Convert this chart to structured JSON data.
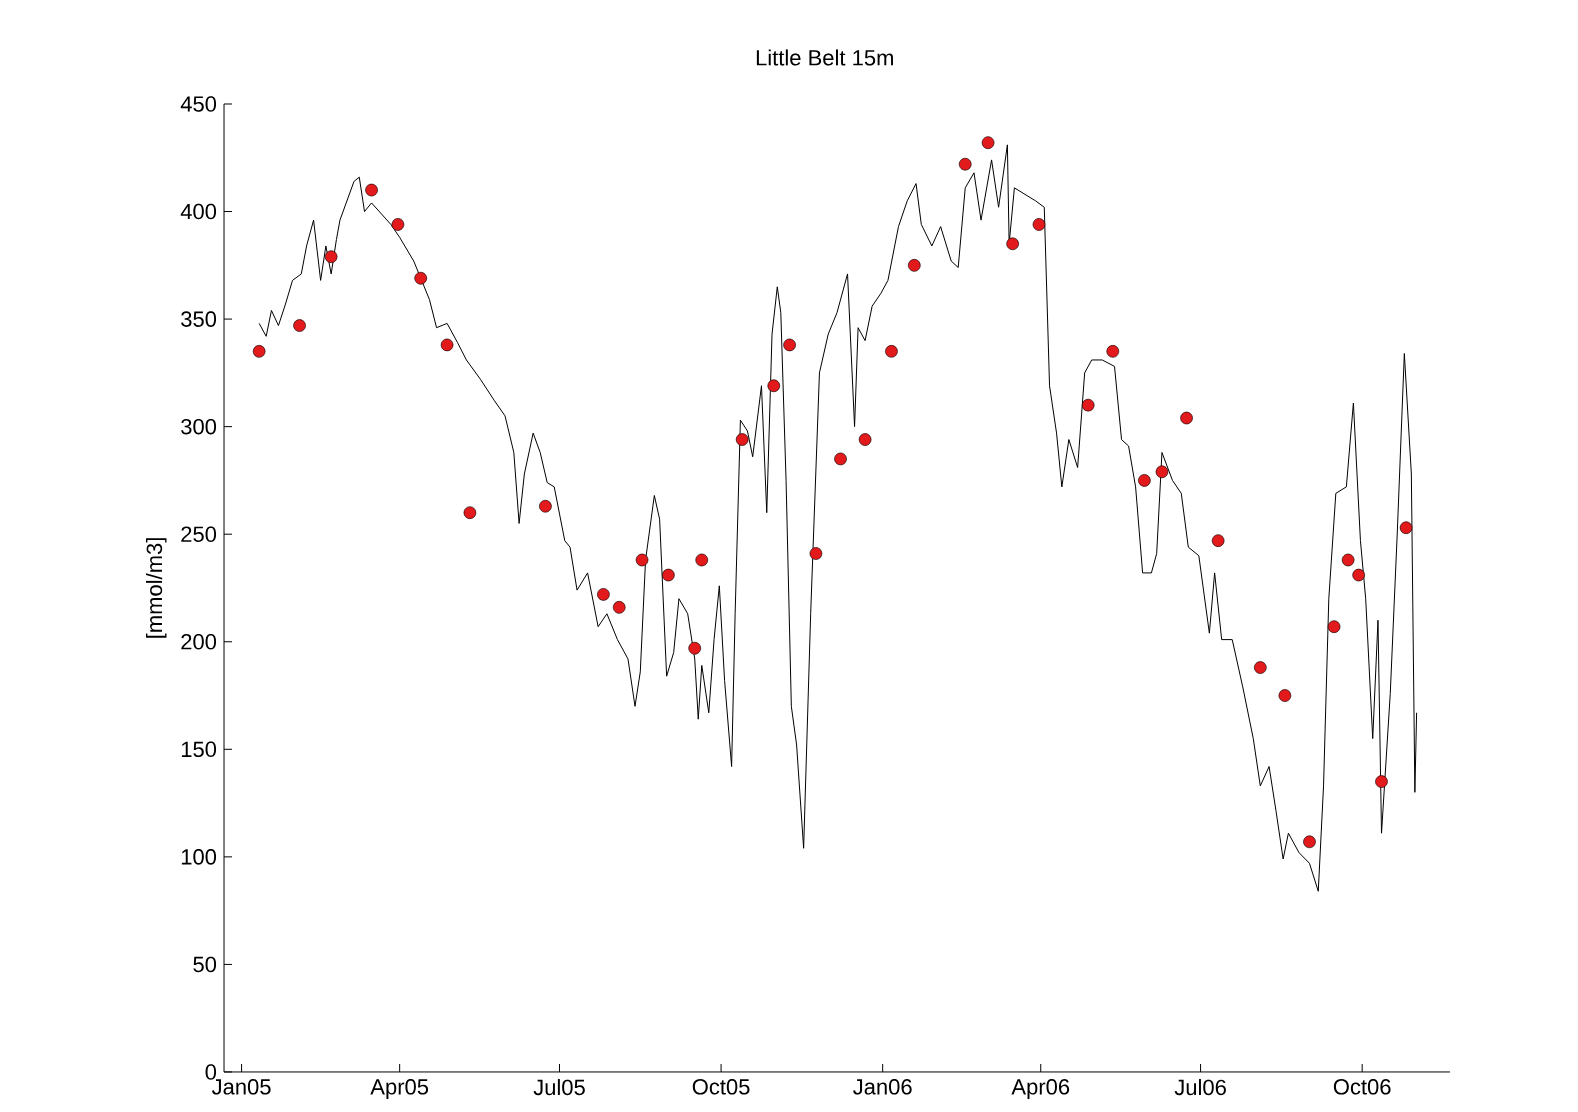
{
  "chart_data": {
    "type": "line",
    "title": "Little Belt 15m",
    "ylabel": "[mmol/m3]",
    "xlim": [
      "2004-12-22",
      "2006-11-20"
    ],
    "ylim": [
      0,
      450
    ],
    "xticks": [
      {
        "value": "2005-01-01",
        "label": "Jan05"
      },
      {
        "value": "2005-04-01",
        "label": "Apr05"
      },
      {
        "value": "2005-07-01",
        "label": "Jul05"
      },
      {
        "value": "2005-10-01",
        "label": "Oct05"
      },
      {
        "value": "2006-01-01",
        "label": "Jan06"
      },
      {
        "value": "2006-04-01",
        "label": "Apr06"
      },
      {
        "value": "2006-07-01",
        "label": "Jul06"
      },
      {
        "value": "2006-10-01",
        "label": "Oct06"
      }
    ],
    "yticks": [
      0,
      50,
      100,
      150,
      200,
      250,
      300,
      350,
      400,
      450
    ],
    "grid": false,
    "series": [
      {
        "color": "#000000",
        "marker": "none",
        "line_style": "solid",
        "x": [
          "2005-01-11",
          "2005-01-15",
          "2005-01-18",
          "2005-01-22",
          "2005-01-26",
          "2005-01-30",
          "2005-02-04",
          "2005-02-07",
          "2005-02-11",
          "2005-02-15",
          "2005-02-18",
          "2005-02-21",
          "2005-02-24",
          "2005-02-26",
          "2005-03-06",
          "2005-03-09",
          "2005-03-12",
          "2005-03-16",
          "2005-03-27",
          "2005-04-01",
          "2005-04-09",
          "2005-04-15",
          "2005-04-18",
          "2005-04-22",
          "2005-04-28",
          "2005-05-04",
          "2005-05-09",
          "2005-05-17",
          "2005-05-25",
          "2005-05-31",
          "2005-06-05",
          "2005-06-08",
          "2005-06-11",
          "2005-06-16",
          "2005-06-20",
          "2005-06-24",
          "2005-06-28",
          "2005-07-04",
          "2005-07-07",
          "2005-07-11",
          "2005-07-17",
          "2005-07-23",
          "2005-07-28",
          "2005-08-03",
          "2005-08-09",
          "2005-08-13",
          "2005-08-16",
          "2005-08-19",
          "2005-08-24",
          "2005-08-27",
          "2005-08-31",
          "2005-09-04",
          "2005-09-07",
          "2005-09-12",
          "2005-09-16",
          "2005-09-18",
          "2005-09-20",
          "2005-09-24",
          "2005-09-27",
          "2005-09-30",
          "2005-10-03",
          "2005-10-07",
          "2005-10-09",
          "2005-10-12",
          "2005-10-16",
          "2005-10-19",
          "2005-10-24",
          "2005-10-27",
          "2005-10-30",
          "2005-11-02",
          "2005-11-04",
          "2005-11-07",
          "2005-11-10",
          "2005-11-13",
          "2005-11-17",
          "2005-11-21",
          "2005-11-26",
          "2005-12-01",
          "2005-12-06",
          "2005-12-12",
          "2005-12-16",
          "2005-12-18",
          "2005-12-22",
          "2005-12-26",
          "2005-12-31",
          "2006-01-04",
          "2006-01-10",
          "2006-01-15",
          "2006-01-20",
          "2006-01-23",
          "2006-01-29",
          "2006-02-03",
          "2006-02-09",
          "2006-02-13",
          "2006-02-17",
          "2006-02-22",
          "2006-02-26",
          "2006-03-04",
          "2006-03-08",
          "2006-03-13",
          "2006-03-14",
          "2006-03-17",
          "2006-03-23",
          "2006-03-29",
          "2006-04-03",
          "2006-04-06",
          "2006-04-10",
          "2006-04-13",
          "2006-04-17",
          "2006-04-22",
          "2006-04-26",
          "2006-04-30",
          "2006-05-06",
          "2006-05-13",
          "2006-05-17",
          "2006-05-21",
          "2006-05-25",
          "2006-05-29",
          "2006-06-03",
          "2006-06-06",
          "2006-06-09",
          "2006-06-15",
          "2006-06-20",
          "2006-06-24",
          "2006-06-30",
          "2006-07-06",
          "2006-07-09",
          "2006-07-13",
          "2006-07-19",
          "2006-07-25",
          "2006-07-31",
          "2006-08-04",
          "2006-08-09",
          "2006-08-13",
          "2006-08-17",
          "2006-08-20",
          "2006-08-26",
          "2006-09-01",
          "2006-09-06",
          "2006-09-09",
          "2006-09-12",
          "2006-09-16",
          "2006-09-22",
          "2006-09-26",
          "2006-09-30",
          "2006-10-03",
          "2006-10-07",
          "2006-10-10",
          "2006-10-12",
          "2006-10-17",
          "2006-10-21",
          "2006-10-25",
          "2006-10-29",
          "2006-10-31",
          "2006-11-01"
        ],
        "values": [
          348,
          342,
          354,
          347,
          357,
          368,
          371,
          384,
          396,
          368,
          384,
          371,
          387,
          396,
          414,
          416,
          400,
          404,
          394,
          388,
          377,
          365,
          359,
          346,
          348,
          339,
          331,
          322,
          312,
          305,
          288,
          255,
          278,
          297,
          288,
          274,
          272,
          247,
          244,
          224,
          232,
          207,
          213,
          201,
          192,
          170,
          186,
          238,
          268,
          257,
          184,
          195,
          220,
          213,
          192,
          164,
          189,
          167,
          201,
          226,
          182,
          142,
          213,
          303,
          298,
          286,
          319,
          260,
          343,
          365,
          353,
          275,
          170,
          152,
          104,
          213,
          325,
          343,
          353,
          371,
          300,
          346,
          340,
          356,
          362,
          368,
          393,
          405,
          413,
          394,
          384,
          393,
          377,
          374,
          411,
          418,
          396,
          424,
          402,
          431,
          385,
          411,
          408,
          405,
          402,
          319,
          297,
          272,
          294,
          281,
          325,
          331,
          331,
          328,
          294,
          291,
          272,
          232,
          232,
          241,
          288,
          275,
          269,
          244,
          240,
          204,
          232,
          201,
          201,
          179,
          155,
          133,
          142,
          121,
          99,
          111,
          102,
          97,
          84,
          133,
          220,
          269,
          272,
          311,
          247,
          220,
          155,
          210,
          111,
          176,
          251,
          334,
          278,
          130,
          167
        ]
      },
      {
        "type": "scatter",
        "color": "#e31a1c",
        "marker": "circle",
        "x": [
          "2005-01-11",
          "2005-02-03",
          "2005-02-21",
          "2005-03-16",
          "2005-03-31",
          "2005-04-13",
          "2005-04-28",
          "2005-05-11",
          "2005-06-23",
          "2005-07-26",
          "2005-08-04",
          "2005-08-17",
          "2005-09-01",
          "2005-09-16",
          "2005-09-20",
          "2005-10-13",
          "2005-10-31",
          "2005-11-09",
          "2005-11-24",
          "2005-12-08",
          "2005-12-22",
          "2006-01-06",
          "2006-01-19",
          "2006-02-17",
          "2006-03-02",
          "2006-03-16",
          "2006-03-31",
          "2006-04-28",
          "2006-05-12",
          "2006-05-30",
          "2006-06-09",
          "2006-06-23",
          "2006-07-11",
          "2006-08-04",
          "2006-08-18",
          "2006-09-01",
          "2006-09-15",
          "2006-09-23",
          "2006-09-29",
          "2006-10-12",
          "2006-10-26"
        ],
        "values": [
          335,
          347,
          379,
          410,
          394,
          369,
          338,
          260,
          263,
          222,
          216,
          238,
          231,
          197,
          238,
          294,
          319,
          338,
          241,
          285,
          294,
          335,
          375,
          422,
          432,
          385,
          394,
          310,
          335,
          275,
          279,
          304,
          247,
          188,
          175,
          107,
          207,
          238,
          231,
          135,
          253
        ]
      }
    ]
  }
}
